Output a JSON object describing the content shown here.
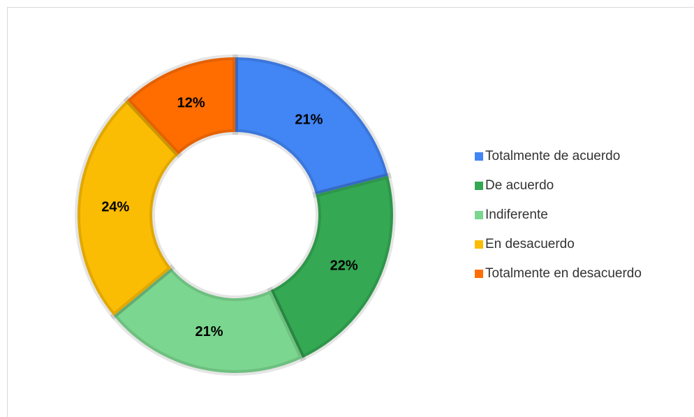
{
  "chart_data": {
    "type": "donut",
    "categories": [
      "Totalmente de acuerdo",
      "De acuerdo",
      "Indiferente",
      "En desacuerdo",
      "Totalmente en desacuerdo"
    ],
    "values": [
      21,
      22,
      21,
      24,
      12
    ],
    "value_labels": [
      "21%",
      "22%",
      "21%",
      "24%",
      "12%"
    ],
    "colors": [
      "#4285f4",
      "#34a853",
      "#7bd68f",
      "#fbbc04",
      "#ff6d01"
    ],
    "legend": "right"
  }
}
